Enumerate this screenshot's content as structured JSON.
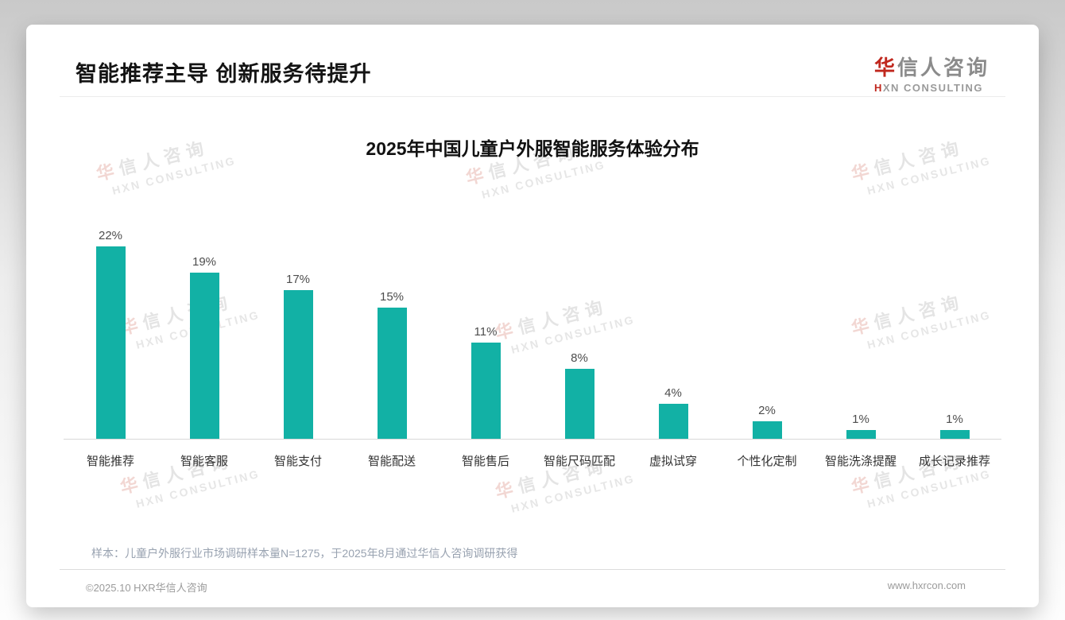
{
  "header": {
    "title": "智能推荐主导 创新服务待提升",
    "logo": {
      "zh_first": "华",
      "zh_rest": "信人咨询",
      "en_first": "H",
      "en_rest": "XN CONSULTING"
    }
  },
  "chart_data": {
    "type": "bar",
    "title": "2025年中国儿童户外服智能服务体验分布",
    "categories": [
      "智能推荐",
      "智能客服",
      "智能支付",
      "智能配送",
      "智能售后",
      "智能尺码匹配",
      "虚拟试穿",
      "个性化定制",
      "智能洗涤提醒",
      "成长记录推荐"
    ],
    "values": [
      22,
      19,
      17,
      15,
      11,
      8,
      4,
      2,
      1,
      1
    ],
    "unit": "%",
    "ylim": [
      0,
      22
    ],
    "bar_color": "#12B1A5",
    "grid": false,
    "legend": "none",
    "value_labels_shown": true,
    "xlabel": "",
    "ylabel": ""
  },
  "watermark": {
    "zh_first": "华",
    "zh_rest": "信人咨询",
    "en": "HXN CONSULTING"
  },
  "footnote": "样本：儿童户外服行业市场调研样本量N=1275，于2025年8月通过华信人咨询调研获得",
  "footer": {
    "left": "©2025.10 HXR华信人咨询",
    "right": "www.hxrcon.com"
  },
  "colors": {
    "bar": "#12B1A5",
    "accent_red": "#C0281E"
  }
}
